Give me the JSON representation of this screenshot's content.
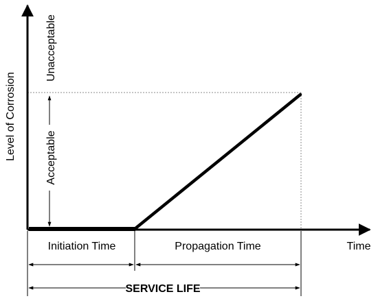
{
  "diagram": {
    "y_axis_label": "Level of Corrosion",
    "x_axis_label": "Time",
    "zones": {
      "upper_label": "Unacceptable",
      "lower_label": "Acceptable"
    },
    "phases": [
      {
        "label": "Initiation Time"
      },
      {
        "label": "Propagation Time"
      }
    ],
    "overall_label": "SERVICE LIFE",
    "colors": {
      "line": "#000000",
      "dotted_guide": "#888888",
      "background": "#ffffff"
    }
  }
}
